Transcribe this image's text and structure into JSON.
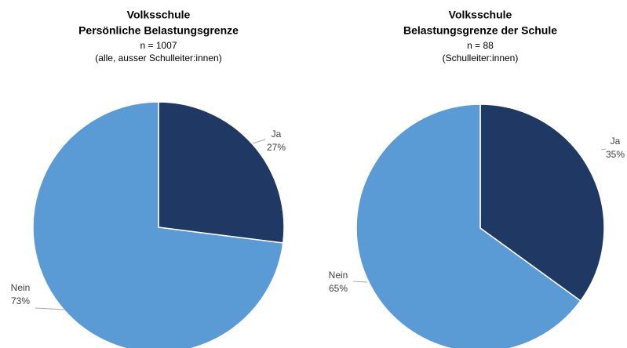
{
  "chart_data": [
    {
      "type": "pie",
      "title": "Volksschule",
      "subtitle": "Persönliche Belastungsgrenze",
      "annotations": [
        "n = 1007",
        "(alle, ausser Schulleiter:innen)"
      ],
      "categories": [
        "Ja",
        "Nein"
      ],
      "values": [
        27,
        73
      ],
      "value_labels": [
        "27%",
        "73%"
      ],
      "colors": [
        "#203864",
        "#5b9bd5"
      ]
    },
    {
      "type": "pie",
      "title": "Volksschule",
      "subtitle": "Belastungsgrenze der Schule",
      "annotations": [
        "n = 88",
        "(Schulleiter:innen)"
      ],
      "categories": [
        "Ja",
        "Nein"
      ],
      "values": [
        35,
        65
      ],
      "value_labels": [
        "35%",
        "65%"
      ],
      "colors": [
        "#203864",
        "#5b9bd5"
      ]
    }
  ]
}
